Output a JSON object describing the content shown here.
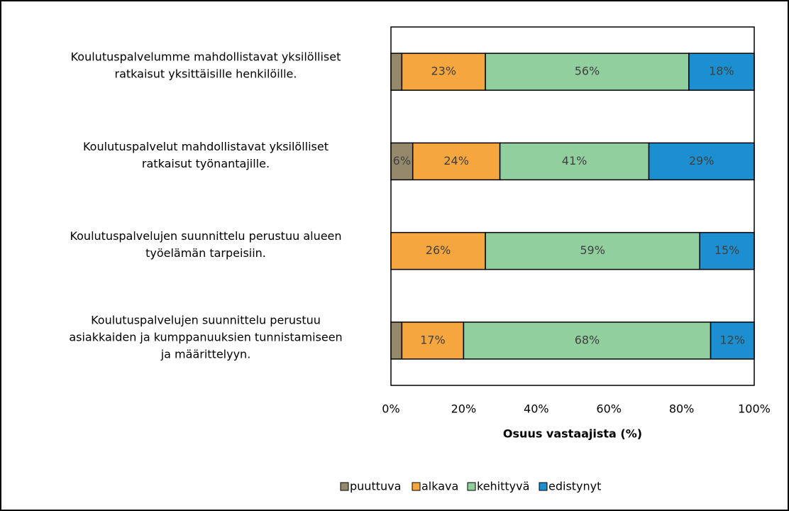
{
  "chart_data": {
    "type": "bar",
    "orientation": "horizontal",
    "stacked": true,
    "x_label": "Osuus vastaajista (%)",
    "categories": [
      [
        "Koulutuspalvelumme mahdollistavat yksilölliset",
        "ratkaisut yksittäisille henkilöille."
      ],
      [
        "Koulutuspalvelut mahdollistavat yksilölliset",
        "ratkaisut työnantajille."
      ],
      [
        "Koulutuspalvelujen suunnittelu perustuu alueen",
        "työelämän tarpeisiin."
      ],
      [
        "Koulutuspalvelujen suunnittelu perustuu",
        "asiakkaiden ja kumppanuuksien tunnistamiseen",
        "ja määrittelyyn."
      ]
    ],
    "series": [
      {
        "name": "puuttuva",
        "color": "#948a6b",
        "values": [
          3,
          6,
          null,
          3
        ],
        "value_labels": [
          null,
          "6%",
          null,
          null
        ]
      },
      {
        "name": "alkava",
        "color": "#f5a63f",
        "values": [
          23,
          24,
          26,
          17
        ],
        "value_labels": [
          "23%",
          "24%",
          "26%",
          "17%"
        ]
      },
      {
        "name": "kehittyvä",
        "color": "#92cf9e",
        "values": [
          56,
          41,
          59,
          68
        ],
        "value_labels": [
          "56%",
          "41%",
          "59%",
          "68%"
        ]
      },
      {
        "name": "edistynyt",
        "color": "#1b8fd0",
        "values": [
          18,
          29,
          15,
          12
        ],
        "value_labels": [
          "18%",
          "29%",
          "15%",
          "12%"
        ]
      }
    ],
    "xlim": [
      0,
      100
    ],
    "xticks": [
      {
        "value": 0,
        "label": "0%"
      },
      {
        "value": 20,
        "label": "20%"
      },
      {
        "value": 40,
        "label": "40%"
      },
      {
        "value": 60,
        "label": "60%"
      },
      {
        "value": 80,
        "label": "80%"
      },
      {
        "value": 100,
        "label": "100%"
      }
    ],
    "legend": "bottom"
  }
}
